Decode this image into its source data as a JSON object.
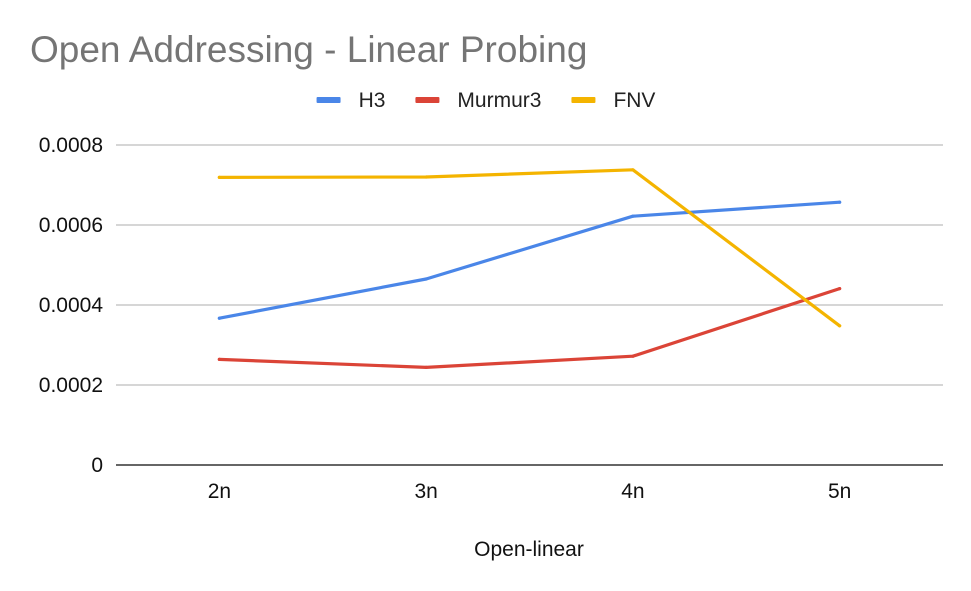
{
  "chart_data": {
    "type": "line",
    "title": "Open Addressing - Linear Probing",
    "xlabel": "Open-linear",
    "ylabel": "",
    "categories": [
      "2n",
      "3n",
      "4n",
      "5n"
    ],
    "ylim": [
      0,
      0.0008
    ],
    "yticks": [
      0,
      0.0002,
      0.0004,
      0.0006,
      0.0008
    ],
    "ytick_labels": [
      "0",
      "0.0002",
      "0.0004",
      "0.0006",
      "0.0008"
    ],
    "grid": true,
    "legend_position": "top",
    "series": [
      {
        "name": "H3",
        "color": "#4a86e8",
        "values": [
          0.000367,
          0.000465,
          0.000622,
          0.000657
        ]
      },
      {
        "name": "Murmur3",
        "color": "#db4437",
        "values": [
          0.000264,
          0.000244,
          0.000272,
          0.000441
        ]
      },
      {
        "name": "FNV",
        "color": "#f4b400",
        "values": [
          0.000719,
          0.00072,
          0.000738,
          0.000348
        ]
      }
    ]
  }
}
